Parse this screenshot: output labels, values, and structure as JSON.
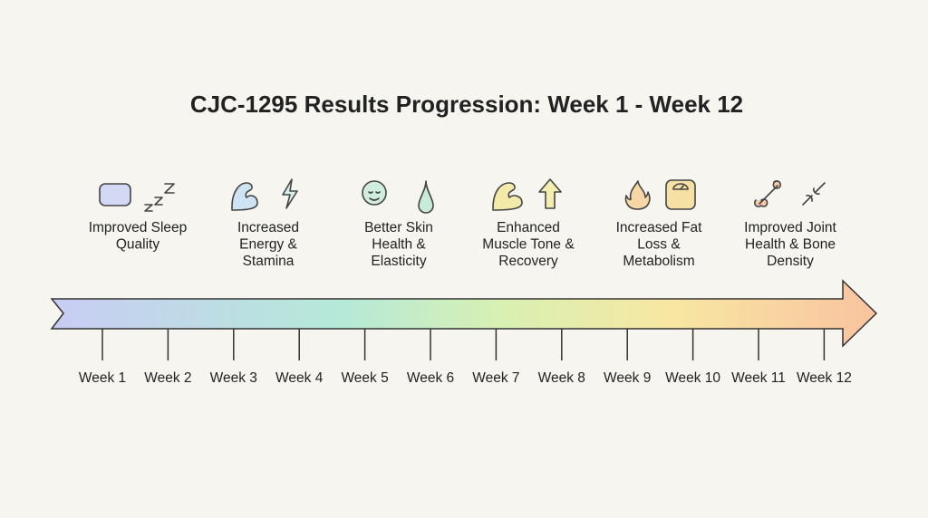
{
  "title": "CJC-1295 Results Progression: Week 1 - Week 12",
  "milestones": [
    {
      "label": [
        "Improved Sleep",
        "Quality"
      ]
    },
    {
      "label": [
        "Increased",
        "Energy &",
        "Stamina"
      ]
    },
    {
      "label": [
        "Better Skin",
        "Health &",
        "Elasticity"
      ]
    },
    {
      "label": [
        "Enhanced",
        "Muscle Tone &",
        "Recovery"
      ]
    },
    {
      "label": [
        "Increased Fat",
        "Loss &",
        "Metabolism"
      ]
    },
    {
      "label": [
        "Improved Joint",
        "Health & Bone",
        "Density"
      ]
    }
  ],
  "weeks": [
    "Week 1",
    "Week 2",
    "Week 3",
    "Week 4",
    "Week 5",
    "Week 6",
    "Week 7",
    "Week 8",
    "Week 9",
    "Week 10",
    "Week 11",
    "Week 12"
  ]
}
